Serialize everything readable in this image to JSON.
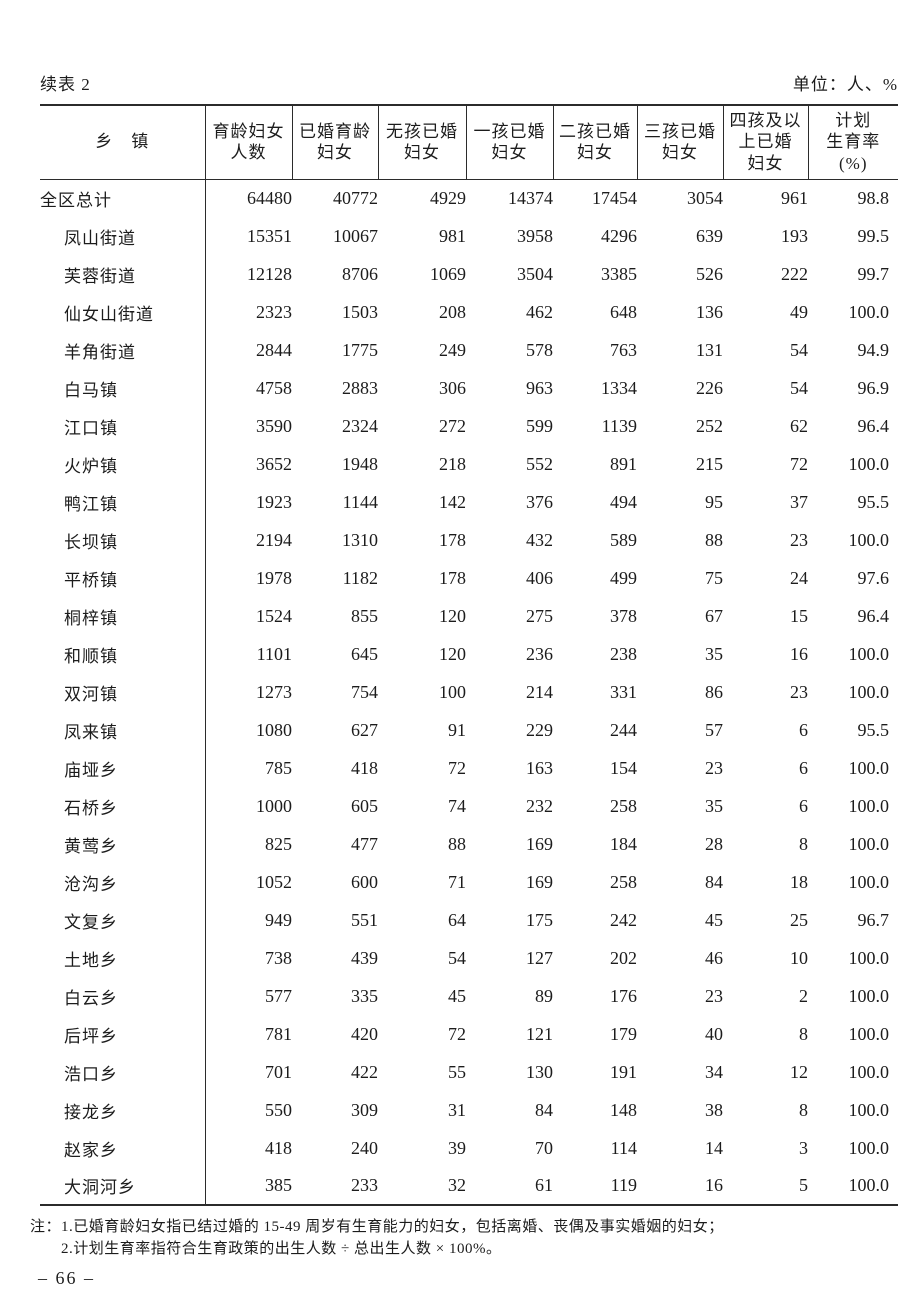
{
  "page": {
    "continuation_label": "续表 2",
    "unit_label": "单位：人、%",
    "page_number": "– 66 –"
  },
  "table": {
    "columns": [
      {
        "id": "township",
        "lines": [
          "乡　镇"
        ]
      },
      {
        "id": "women-of-childbearing-age",
        "lines": [
          "育龄妇女",
          "人数"
        ]
      },
      {
        "id": "married-women-of-childbearing-age",
        "lines": [
          "已婚育龄",
          "妇女"
        ]
      },
      {
        "id": "married-no-child",
        "lines": [
          "无孩已婚",
          "妇女"
        ]
      },
      {
        "id": "married-one-child",
        "lines": [
          "一孩已婚",
          "妇女"
        ]
      },
      {
        "id": "married-two-children",
        "lines": [
          "二孩已婚",
          "妇女"
        ]
      },
      {
        "id": "married-three-children",
        "lines": [
          "三孩已婚",
          "妇女"
        ]
      },
      {
        "id": "married-four-plus-children",
        "lines": [
          "四孩及以",
          "上已婚",
          "妇女"
        ]
      },
      {
        "id": "family-planning-rate",
        "lines": [
          "计划",
          "生育率",
          "(%)"
        ]
      }
    ],
    "rows": [
      {
        "name": "全区总计",
        "indent": false,
        "values": [
          64480,
          40772,
          4929,
          14374,
          17454,
          3054,
          961,
          "98.8"
        ]
      },
      {
        "name": "凤山街道",
        "indent": true,
        "values": [
          15351,
          10067,
          981,
          3958,
          4296,
          639,
          193,
          "99.5"
        ]
      },
      {
        "name": "芙蓉街道",
        "indent": true,
        "values": [
          12128,
          8706,
          1069,
          3504,
          3385,
          526,
          222,
          "99.7"
        ]
      },
      {
        "name": "仙女山街道",
        "indent": true,
        "values": [
          2323,
          1503,
          208,
          462,
          648,
          136,
          49,
          "100.0"
        ]
      },
      {
        "name": "羊角街道",
        "indent": true,
        "values": [
          2844,
          1775,
          249,
          578,
          763,
          131,
          54,
          "94.9"
        ]
      },
      {
        "name": "白马镇",
        "indent": true,
        "values": [
          4758,
          2883,
          306,
          963,
          1334,
          226,
          54,
          "96.9"
        ]
      },
      {
        "name": "江口镇",
        "indent": true,
        "values": [
          3590,
          2324,
          272,
          599,
          1139,
          252,
          62,
          "96.4"
        ]
      },
      {
        "name": "火炉镇",
        "indent": true,
        "values": [
          3652,
          1948,
          218,
          552,
          891,
          215,
          72,
          "100.0"
        ]
      },
      {
        "name": "鸭江镇",
        "indent": true,
        "values": [
          1923,
          1144,
          142,
          376,
          494,
          95,
          37,
          "95.5"
        ]
      },
      {
        "name": "长坝镇",
        "indent": true,
        "values": [
          2194,
          1310,
          178,
          432,
          589,
          88,
          23,
          "100.0"
        ]
      },
      {
        "name": "平桥镇",
        "indent": true,
        "values": [
          1978,
          1182,
          178,
          406,
          499,
          75,
          24,
          "97.6"
        ]
      },
      {
        "name": "桐梓镇",
        "indent": true,
        "values": [
          1524,
          855,
          120,
          275,
          378,
          67,
          15,
          "96.4"
        ]
      },
      {
        "name": "和顺镇",
        "indent": true,
        "values": [
          1101,
          645,
          120,
          236,
          238,
          35,
          16,
          "100.0"
        ]
      },
      {
        "name": "双河镇",
        "indent": true,
        "values": [
          1273,
          754,
          100,
          214,
          331,
          86,
          23,
          "100.0"
        ]
      },
      {
        "name": "凤来镇",
        "indent": true,
        "values": [
          1080,
          627,
          91,
          229,
          244,
          57,
          6,
          "95.5"
        ]
      },
      {
        "name": "庙垭乡",
        "indent": true,
        "values": [
          785,
          418,
          72,
          163,
          154,
          23,
          6,
          "100.0"
        ]
      },
      {
        "name": "石桥乡",
        "indent": true,
        "values": [
          1000,
          605,
          74,
          232,
          258,
          35,
          6,
          "100.0"
        ]
      },
      {
        "name": "黄莺乡",
        "indent": true,
        "values": [
          825,
          477,
          88,
          169,
          184,
          28,
          8,
          "100.0"
        ]
      },
      {
        "name": "沧沟乡",
        "indent": true,
        "values": [
          1052,
          600,
          71,
          169,
          258,
          84,
          18,
          "100.0"
        ]
      },
      {
        "name": "文复乡",
        "indent": true,
        "values": [
          949,
          551,
          64,
          175,
          242,
          45,
          25,
          "96.7"
        ]
      },
      {
        "name": "土地乡",
        "indent": true,
        "values": [
          738,
          439,
          54,
          127,
          202,
          46,
          10,
          "100.0"
        ]
      },
      {
        "name": "白云乡",
        "indent": true,
        "values": [
          577,
          335,
          45,
          89,
          176,
          23,
          2,
          "100.0"
        ]
      },
      {
        "name": "后坪乡",
        "indent": true,
        "values": [
          781,
          420,
          72,
          121,
          179,
          40,
          8,
          "100.0"
        ]
      },
      {
        "name": "浩口乡",
        "indent": true,
        "values": [
          701,
          422,
          55,
          130,
          191,
          34,
          12,
          "100.0"
        ]
      },
      {
        "name": "接龙乡",
        "indent": true,
        "values": [
          550,
          309,
          31,
          84,
          148,
          38,
          8,
          "100.0"
        ]
      },
      {
        "name": "赵家乡",
        "indent": true,
        "values": [
          418,
          240,
          39,
          70,
          114,
          14,
          3,
          "100.0"
        ]
      },
      {
        "name": "大洞河乡",
        "indent": true,
        "values": [
          385,
          233,
          32,
          61,
          119,
          16,
          5,
          "100.0"
        ]
      }
    ]
  },
  "notes": {
    "prefix": "注：",
    "lines": [
      "1.已婚育龄妇女指已结过婚的 15-49 周岁有生育能力的妇女，包括离婚、丧偶及事实婚姻的妇女；",
      "2.计划生育率指符合生育政策的出生人数 ÷ 总出生人数 × 100%。"
    ]
  }
}
